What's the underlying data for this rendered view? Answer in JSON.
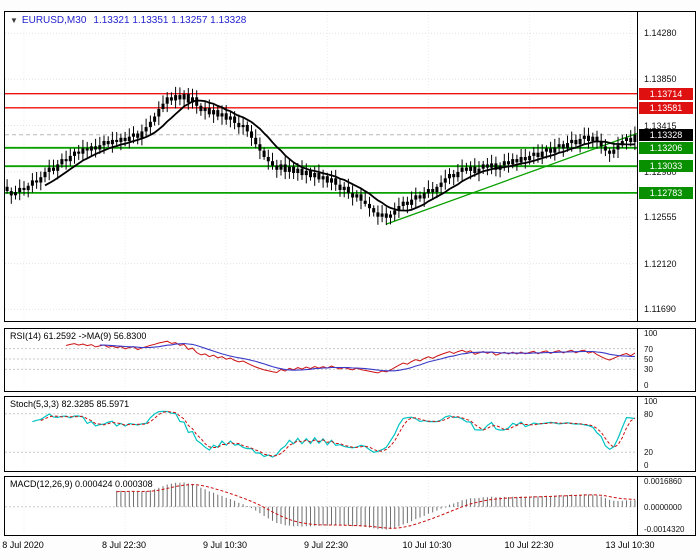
{
  "header": {
    "collapse_icon": "▼",
    "symbol": "EURUSD,M30",
    "ohlc": "1.13321 1.13351 1.13257 1.13328"
  },
  "indicator_labels": {
    "rsi": "RSI(14) 61.2592  ->MA(9) 56.8300",
    "stoch": "Stoch(5,3,3) 82.3285 85.5971",
    "macd": "MACD(12,26,9) 0.000424 0.000308"
  },
  "chart_data": {
    "type": "candlestick",
    "symbol": "EURUSD",
    "timeframe": "M30",
    "current_bar": {
      "open": 1.13321,
      "high": 1.13351,
      "low": 1.13257,
      "close": 1.13328
    },
    "y_domain": [
      1.116,
      1.1448
    ],
    "price_scale": {
      "grid": [
        {
          "text": "1.14280",
          "price": 1.1428
        },
        {
          "text": "1.13850",
          "price": 1.1385
        },
        {
          "text": "1.13415",
          "price": 1.13415
        },
        {
          "text": "1.12980",
          "price": 1.1298
        },
        {
          "text": "1.12555",
          "price": 1.12555
        },
        {
          "text": "1.12120",
          "price": 1.1212
        },
        {
          "text": "1.11690",
          "price": 1.1169
        }
      ],
      "badges": [
        {
          "text": "1.13714",
          "price": 1.13714,
          "bg": "#df1010"
        },
        {
          "text": "1.13581",
          "price": 1.13581,
          "bg": "#df1010"
        },
        {
          "text": "1.13328",
          "price": 1.13328,
          "bg": "#000000"
        },
        {
          "text": "1.13206",
          "price": 1.13206,
          "bg": "#089000"
        },
        {
          "text": "1.13033",
          "price": 1.13033,
          "bg": "#089000"
        },
        {
          "text": "1.12783",
          "price": 1.12783,
          "bg": "#089000"
        }
      ]
    },
    "levels": [
      {
        "price": 1.13714,
        "color": "#ee1111",
        "width": 1.4,
        "kind": "resistance"
      },
      {
        "price": 1.13581,
        "color": "#ee1111",
        "width": 1.4,
        "kind": "resistance"
      },
      {
        "price": 1.13328,
        "color": "#b8b8b8",
        "width": 1,
        "kind": "last-price",
        "style": "dashed"
      },
      {
        "price": 1.13206,
        "color": "#0aa000",
        "width": 1.8,
        "kind": "support"
      },
      {
        "price": 1.13033,
        "color": "#0aa000",
        "width": 1.8,
        "kind": "support"
      },
      {
        "price": 1.12783,
        "color": "#0aa000",
        "width": 1.8,
        "kind": "support"
      }
    ],
    "trendline": {
      "x1_bar": 90,
      "price1": 1.1249,
      "x2_bar": 150,
      "price2": 1.1334,
      "color": "#0aa000"
    },
    "closes": [
      1.128,
      1.1276,
      1.1279,
      1.1283,
      1.1281,
      1.1285,
      1.129,
      1.1288,
      1.1293,
      1.1298,
      1.1302,
      1.1299,
      1.1305,
      1.131,
      1.1308,
      1.1313,
      1.1317,
      1.1315,
      1.132,
      1.1318,
      1.1322,
      1.1319,
      1.1323,
      1.1327,
      1.1324,
      1.1328,
      1.1326,
      1.133,
      1.1327,
      1.1331,
      1.1334,
      1.133,
      1.1336,
      1.134,
      1.1345,
      1.135,
      1.1357,
      1.1362,
      1.1368,
      1.1365,
      1.137,
      1.1366,
      1.1371,
      1.1363,
      1.1368,
      1.136,
      1.1355,
      1.1358,
      1.1352,
      1.1356,
      1.135,
      1.1353,
      1.1347,
      1.135,
      1.1344,
      1.134,
      1.1342,
      1.1336,
      1.133,
      1.1324,
      1.1318,
      1.1312,
      1.1308,
      1.1304,
      1.13,
      1.1305,
      1.1298,
      1.1303,
      1.1297,
      1.1301,
      1.1295,
      1.1299,
      1.1293,
      1.1297,
      1.1291,
      1.1294,
      1.1288,
      1.1292,
      1.1286,
      1.1281,
      1.1284,
      1.1278,
      1.1274,
      1.1277,
      1.1271,
      1.1268,
      1.1264,
      1.126,
      1.1256,
      1.1259,
      1.1255,
      1.1258,
      1.1262,
      1.1266,
      1.127,
      1.1267,
      1.1272,
      1.1276,
      1.1273,
      1.1278,
      1.1282,
      1.1279,
      1.1284,
      1.1288,
      1.1292,
      1.1296,
      1.1293,
      1.1298,
      1.1302,
      1.1299,
      1.1303,
      1.1297,
      1.1301,
      1.1305,
      1.1302,
      1.1306,
      1.13,
      1.1304,
      1.1308,
      1.1305,
      1.131,
      1.1307,
      1.1312,
      1.1309,
      1.1313,
      1.1316,
      1.1312,
      1.1317,
      1.132,
      1.1316,
      1.1321,
      1.1324,
      1.132,
      1.1325,
      1.1328,
      1.1324,
      1.1329,
      1.1332,
      1.1327,
      1.1331,
      1.1326,
      1.1322,
      1.1318,
      1.1315,
      1.1319,
      1.1323,
      1.1327,
      1.133,
      1.1326,
      1.13328
    ],
    "indicators": {
      "rsi": {
        "period": 14,
        "ma_period": 9,
        "last": 61.2592,
        "ma_last": 56.83,
        "levels": [
          70,
          50,
          30
        ],
        "range": [
          0,
          100
        ],
        "line_color": "#cc1111",
        "ma_color": "#3a3ac8",
        "scale": [
          "100",
          "70",
          "50",
          "30",
          "0"
        ]
      },
      "stoch": {
        "k": 5,
        "d": 3,
        "slowing": 3,
        "last_k": 82.3285,
        "last_d": 85.5971,
        "levels": [
          80,
          20
        ],
        "range": [
          0,
          100
        ],
        "k_color": "#00c3c3",
        "d_color": "#cc1111",
        "scale": [
          "100",
          "80",
          "20",
          "0"
        ]
      },
      "macd": {
        "fast": 12,
        "slow": 26,
        "signal": 9,
        "last": 0.000424,
        "last_signal": 0.000308,
        "range": [
          -0.001432,
          0.001686
        ],
        "hist_color": "#6f6f6f",
        "signal_color": "#cc1111",
        "scale": [
          "0.0016860",
          "0.0000000",
          "-0.0014320"
        ]
      }
    },
    "time_ticks_bars": [
      4,
      28,
      52,
      76,
      100,
      124,
      148
    ],
    "time_labels": [
      "8 Jul 2020",
      "8 Jul 22:30",
      "9 Jul 10:30",
      "9 Jul 22:30",
      "10 Jul 10:30",
      "10 Jul 22:30",
      "13 Jul 10:30"
    ]
  }
}
